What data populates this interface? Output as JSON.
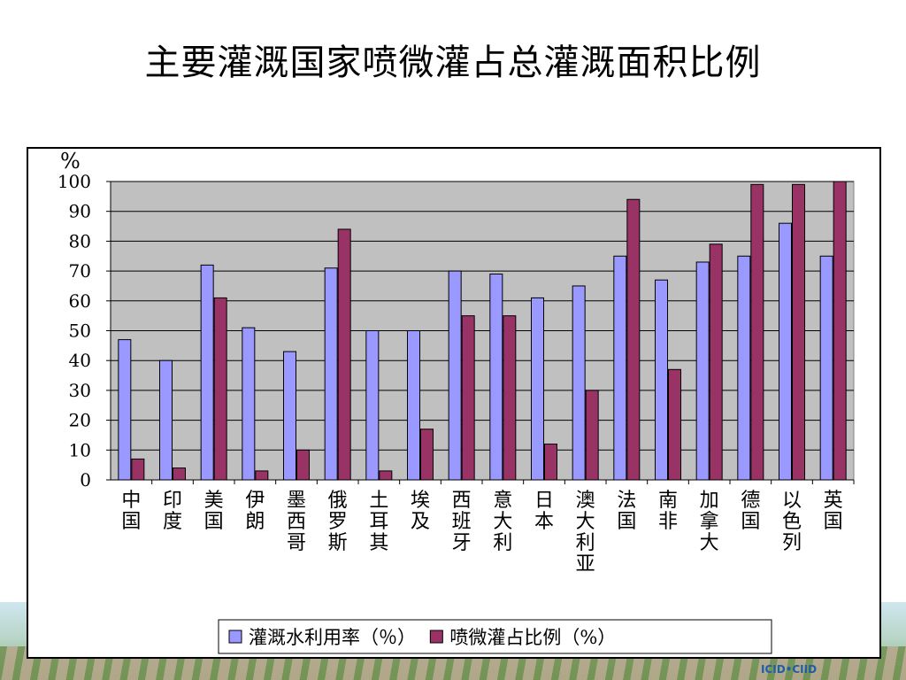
{
  "slide": {
    "title": "主要灌溉国家喷微灌占总灌溉面积比例",
    "logo": "ICID•CIID"
  },
  "colors": {
    "series1": "#9999ff",
    "series2": "#993366",
    "plot_bg": "#c0c0c0"
  },
  "chart_data": {
    "type": "bar",
    "unit_label": "%",
    "ylim": [
      0,
      100
    ],
    "yticks": [
      "0",
      "10",
      "20",
      "30",
      "40",
      "50",
      "60",
      "70",
      "80",
      "90",
      "100"
    ],
    "grid": true,
    "legend_position": "bottom",
    "categories": [
      "中国",
      "印度",
      "美国",
      "伊朗",
      "墨西哥",
      "俄罗斯",
      "土耳其",
      "埃及",
      "西班牙",
      "意大利",
      "日本",
      "澳大利亚",
      "法国",
      "南非",
      "加拿大",
      "德国",
      "以色列",
      "英国"
    ],
    "series": [
      {
        "name": "灌溉水利用率（％）",
        "values": [
          47,
          40,
          72,
          51,
          43,
          71,
          50,
          50,
          70,
          69,
          61,
          65,
          75,
          67,
          73,
          75,
          86,
          75
        ]
      },
      {
        "name": "喷微灌占比例（%）",
        "values": [
          7,
          4,
          61,
          3,
          10,
          84,
          3,
          17,
          55,
          55,
          12,
          30,
          94,
          37,
          79,
          99,
          99,
          100
        ]
      }
    ]
  }
}
